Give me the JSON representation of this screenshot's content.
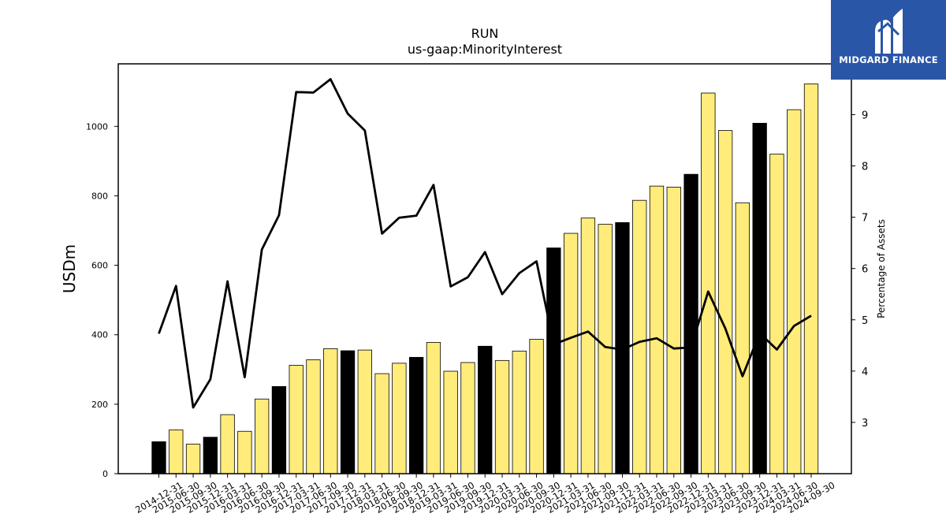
{
  "chart_data": {
    "type": "bar",
    "title": "RUN",
    "subtitle": "us-gaap:MinorityInterest",
    "ylabel": "USDm",
    "y2label": "Percentage of Assets",
    "ylim": [
      0,
      1180
    ],
    "y2lim": [
      2.0,
      9.99
    ],
    "yticks": [
      0,
      200,
      400,
      600,
      800,
      1000
    ],
    "y2ticks": [
      3,
      4,
      5,
      6,
      7,
      8,
      9
    ],
    "categories": [
      "2014-12-31",
      "2015-06-30",
      "2015-09-30",
      "2015-12-31",
      "2016-03-31",
      "2016-06-30",
      "2016-09-30",
      "2016-12-31",
      "2017-03-31",
      "2017-06-30",
      "2017-09-30",
      "2017-12-31",
      "2018-03-31",
      "2018-06-30",
      "2018-09-30",
      "2018-12-31",
      "2019-03-31",
      "2019-06-30",
      "2019-09-30",
      "2019-12-31",
      "2020-03-31",
      "2020-06-30",
      "2020-09-30",
      "2020-12-31",
      "2021-03-31",
      "2021-06-30",
      "2021-09-30",
      "2021-12-31",
      "2022-03-31",
      "2022-06-30",
      "2022-09-30",
      "2022-12-31",
      "2023-03-31",
      "2023-06-30",
      "2023-09-30",
      "2023-12-31",
      "2024-03-31",
      "2024-06-30",
      "2024-09-30"
    ],
    "series": [
      {
        "kind": "bar",
        "values": [
          92,
          126,
          85,
          105,
          170,
          122,
          215,
          251,
          312,
          328,
          360,
          354,
          356,
          288,
          318,
          335,
          378,
          295,
          320,
          367,
          326,
          353,
          387,
          650,
          692,
          736,
          718,
          723,
          787,
          828,
          825,
          862,
          1096,
          988,
          780,
          1009,
          920,
          1048,
          1122
        ],
        "year_end_color": "#000000",
        "other_color": "#ffec7a"
      },
      {
        "kind": "line",
        "axis": "right",
        "color": "#000000",
        "values": [
          4.73,
          5.66,
          3.29,
          3.84,
          5.75,
          3.88,
          6.37,
          7.04,
          9.44,
          9.43,
          9.69,
          9.02,
          8.69,
          6.68,
          6.99,
          7.03,
          7.63,
          5.65,
          5.83,
          6.32,
          5.5,
          5.91,
          6.14,
          4.52,
          4.65,
          4.77,
          4.47,
          4.42,
          4.57,
          4.64,
          4.44,
          4.46,
          5.55,
          4.83,
          3.9,
          4.74,
          4.42,
          4.88,
          5.08
        ]
      }
    ],
    "grid": false,
    "legend": "none"
  },
  "logo": {
    "text": "MIDGARD FINANCE",
    "background": "#2a56a8",
    "icon": "midgard-m-logo-icon"
  }
}
